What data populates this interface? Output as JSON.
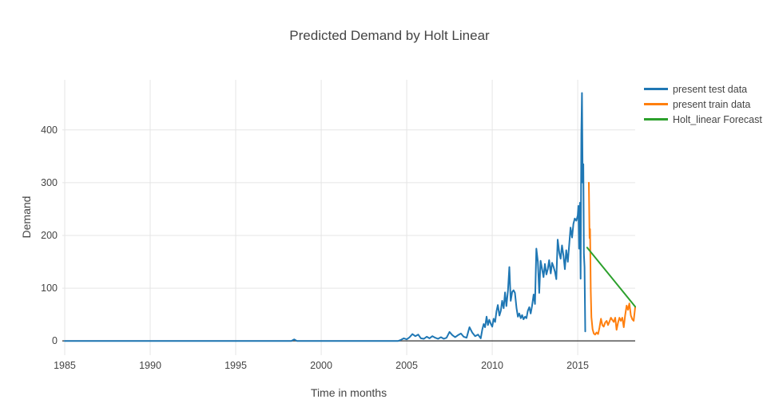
{
  "chart_data": {
    "type": "line",
    "title": "Predicted Demand by Holt Linear",
    "xlabel": "Time in months",
    "ylabel": "Demand",
    "x_ticks": [
      1985,
      1990,
      1995,
      2000,
      2005,
      2010,
      2015
    ],
    "y_ticks": [
      0,
      100,
      200,
      300,
      400
    ],
    "x_range": [
      1984.86,
      2018.36
    ],
    "y_range": [
      -27,
      495
    ],
    "grid": true,
    "legend_position": "right-outside",
    "colors": {
      "background": "#ffffff",
      "gridline": "#e5e5e5",
      "zeroline": "#545454",
      "text": "#444444",
      "title": "#444444"
    },
    "series": [
      {
        "name": "present test data",
        "color": "#1f77b4",
        "points": [
          [
            1985,
            0
          ],
          [
            1988,
            0
          ],
          [
            1991,
            0
          ],
          [
            1994,
            0
          ],
          [
            1996.5,
            0
          ],
          [
            1998.25,
            0
          ],
          [
            1998.42,
            3
          ],
          [
            1998.58,
            0
          ],
          [
            2000,
            0
          ],
          [
            2002,
            0
          ],
          [
            2003.5,
            0
          ],
          [
            2004.5,
            0
          ],
          [
            2004.67,
            2
          ],
          [
            2004.83,
            5
          ],
          [
            2005,
            3
          ],
          [
            2005.17,
            7
          ],
          [
            2005.33,
            13
          ],
          [
            2005.5,
            9
          ],
          [
            2005.67,
            12
          ],
          [
            2005.83,
            5
          ],
          [
            2006,
            4
          ],
          [
            2006.17,
            8
          ],
          [
            2006.33,
            5
          ],
          [
            2006.5,
            9
          ],
          [
            2006.67,
            6
          ],
          [
            2006.83,
            4
          ],
          [
            2007,
            7
          ],
          [
            2007.17,
            4
          ],
          [
            2007.33,
            6
          ],
          [
            2007.5,
            17
          ],
          [
            2007.67,
            11
          ],
          [
            2007.83,
            7
          ],
          [
            2008,
            11
          ],
          [
            2008.17,
            14
          ],
          [
            2008.33,
            8
          ],
          [
            2008.5,
            6
          ],
          [
            2008.67,
            26
          ],
          [
            2008.83,
            16
          ],
          [
            2009,
            9
          ],
          [
            2009.17,
            12
          ],
          [
            2009.33,
            5
          ],
          [
            2009.42,
            22
          ],
          [
            2009.5,
            32
          ],
          [
            2009.58,
            26
          ],
          [
            2009.67,
            46
          ],
          [
            2009.75,
            30
          ],
          [
            2009.83,
            40
          ],
          [
            2009.92,
            32
          ],
          [
            2010,
            27
          ],
          [
            2010.08,
            42
          ],
          [
            2010.17,
            36
          ],
          [
            2010.25,
            56
          ],
          [
            2010.33,
            68
          ],
          [
            2010.42,
            48
          ],
          [
            2010.5,
            57
          ],
          [
            2010.58,
            76
          ],
          [
            2010.67,
            62
          ],
          [
            2010.75,
            92
          ],
          [
            2010.83,
            66
          ],
          [
            2010.92,
            96
          ],
          [
            2011,
            140
          ],
          [
            2011.08,
            76
          ],
          [
            2011.17,
            93
          ],
          [
            2011.25,
            96
          ],
          [
            2011.33,
            91
          ],
          [
            2011.42,
            62
          ],
          [
            2011.5,
            46
          ],
          [
            2011.58,
            52
          ],
          [
            2011.67,
            43
          ],
          [
            2011.75,
            49
          ],
          [
            2011.83,
            41
          ],
          [
            2011.92,
            46
          ],
          [
            2012,
            43
          ],
          [
            2012.08,
            57
          ],
          [
            2012.17,
            64
          ],
          [
            2012.25,
            52
          ],
          [
            2012.33,
            66
          ],
          [
            2012.42,
            88
          ],
          [
            2012.5,
            70
          ],
          [
            2012.58,
            175
          ],
          [
            2012.67,
            150
          ],
          [
            2012.75,
            91
          ],
          [
            2012.83,
            152
          ],
          [
            2012.92,
            135
          ],
          [
            2013,
            121
          ],
          [
            2013.08,
            146
          ],
          [
            2013.17,
            126
          ],
          [
            2013.25,
            136
          ],
          [
            2013.33,
            153
          ],
          [
            2013.42,
            128
          ],
          [
            2013.5,
            148
          ],
          [
            2013.58,
            141
          ],
          [
            2013.67,
            131
          ],
          [
            2013.75,
            117
          ],
          [
            2013.83,
            192
          ],
          [
            2013.92,
            167
          ],
          [
            2014,
            156
          ],
          [
            2014.08,
            181
          ],
          [
            2014.17,
            161
          ],
          [
            2014.25,
            136
          ],
          [
            2014.33,
            172
          ],
          [
            2014.42,
            150
          ],
          [
            2014.5,
            182
          ],
          [
            2014.58,
            215
          ],
          [
            2014.67,
            196
          ],
          [
            2014.75,
            222
          ],
          [
            2014.83,
            232
          ],
          [
            2014.92,
            228
          ],
          [
            2015,
            238
          ],
          [
            2015.04,
            256
          ],
          [
            2015.08,
            175
          ],
          [
            2015.13,
            262
          ],
          [
            2015.17,
            118
          ],
          [
            2015.21,
            392
          ],
          [
            2015.25,
            470
          ],
          [
            2015.29,
            300
          ],
          [
            2015.33,
            335
          ],
          [
            2015.36,
            165
          ],
          [
            2015.4,
            140
          ],
          [
            2015.44,
            18
          ]
        ]
      },
      {
        "name": "present train data",
        "color": "#ff7f0e",
        "points": [
          [
            2015.65,
            300
          ],
          [
            2015.69,
            195
          ],
          [
            2015.72,
            212
          ],
          [
            2015.76,
            95
          ],
          [
            2015.8,
            45
          ],
          [
            2015.87,
            22
          ],
          [
            2015.94,
            14
          ],
          [
            2016.02,
            12
          ],
          [
            2016.1,
            16
          ],
          [
            2016.19,
            13
          ],
          [
            2016.27,
            25
          ],
          [
            2016.36,
            42
          ],
          [
            2016.44,
            30
          ],
          [
            2016.52,
            27
          ],
          [
            2016.61,
            35
          ],
          [
            2016.69,
            38
          ],
          [
            2016.77,
            30
          ],
          [
            2016.86,
            37
          ],
          [
            2016.94,
            44
          ],
          [
            2017.02,
            40
          ],
          [
            2017.11,
            36
          ],
          [
            2017.19,
            44
          ],
          [
            2017.27,
            21
          ],
          [
            2017.36,
            35
          ],
          [
            2017.44,
            44
          ],
          [
            2017.52,
            38
          ],
          [
            2017.61,
            44
          ],
          [
            2017.69,
            26
          ],
          [
            2017.77,
            48
          ],
          [
            2017.86,
            67
          ],
          [
            2017.94,
            59
          ],
          [
            2018.02,
            71
          ],
          [
            2018.11,
            48
          ],
          [
            2018.19,
            41
          ],
          [
            2018.27,
            38
          ],
          [
            2018.36,
            64
          ]
        ]
      },
      {
        "name": "Holt_linear Forecast",
        "color": "#2ca02c",
        "points": [
          [
            2015.55,
            177
          ],
          [
            2018.36,
            65
          ]
        ]
      }
    ]
  }
}
